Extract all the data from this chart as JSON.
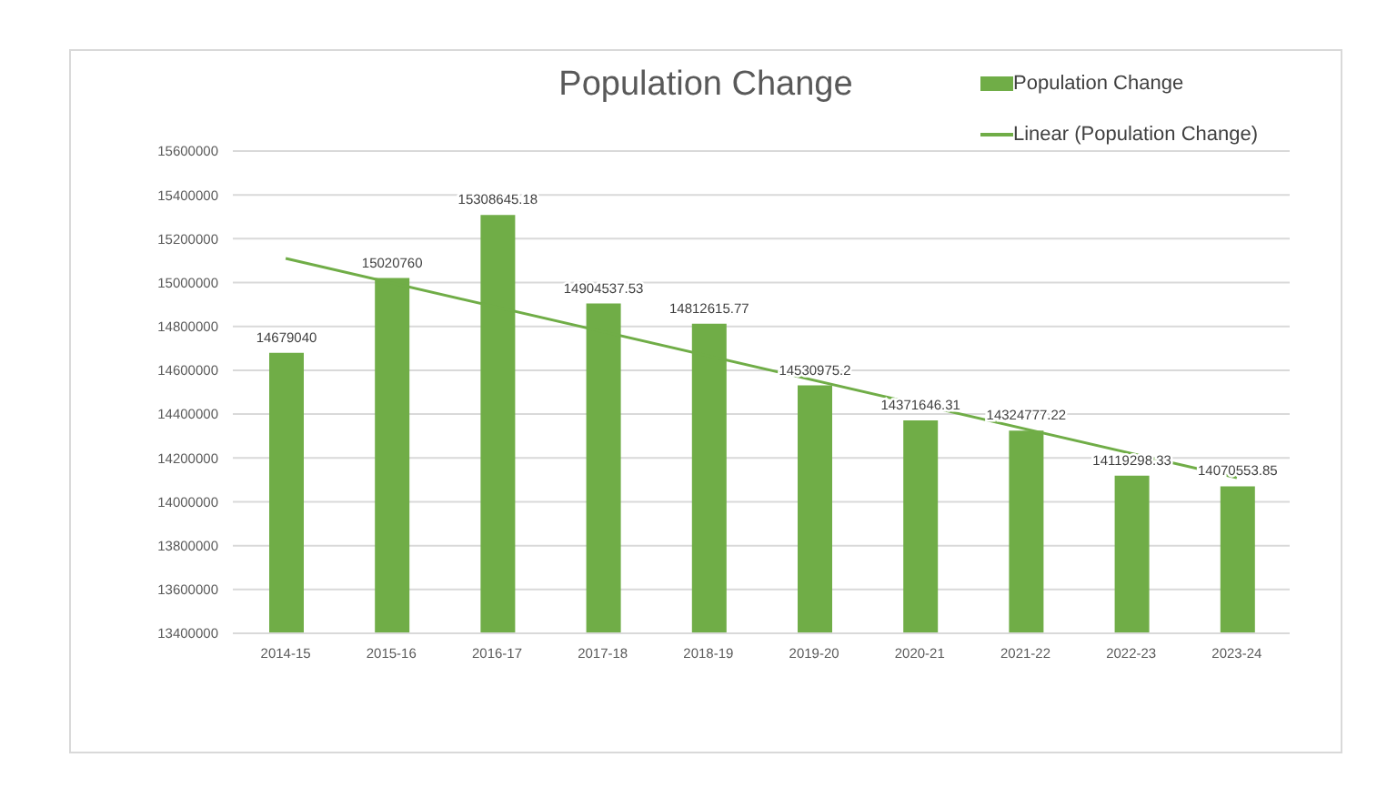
{
  "chart_data": {
    "type": "bar",
    "title": "Population Change",
    "categories": [
      "2014-15",
      "2015-16",
      "2016-17",
      "2017-18",
      "2018-19",
      "2019-20",
      "2020-21",
      "2021-22",
      "2022-23",
      "2023-24"
    ],
    "series": [
      {
        "name": "Population Change",
        "color": "#70ad47",
        "values": [
          14679040,
          15020760,
          15308645.18,
          14904537.53,
          14812615.77,
          14530975.2,
          14371646.31,
          14324777.22,
          14119298.33,
          14070553.85
        ],
        "value_labels": [
          "14679040",
          "15020760",
          "15308645.18",
          "14904537.53",
          "14812615.77",
          "14530975.2",
          "14371646.31",
          "14324777.22",
          "14119298.33",
          "14070553.85"
        ]
      },
      {
        "name": "Linear (Population Change)",
        "type": "line",
        "color": "#70ad47",
        "values": [
          15110000,
          null,
          null,
          null,
          null,
          null,
          null,
          null,
          null,
          14110000
        ]
      }
    ],
    "ylim": [
      13400000,
      15600000
    ],
    "yticks": [
      13400000,
      13600000,
      13800000,
      14000000,
      14200000,
      14400000,
      14600000,
      14800000,
      15000000,
      15200000,
      15400000,
      15600000
    ],
    "grid": "y",
    "legend": "top right",
    "marker": "none",
    "line_style": "solid"
  }
}
